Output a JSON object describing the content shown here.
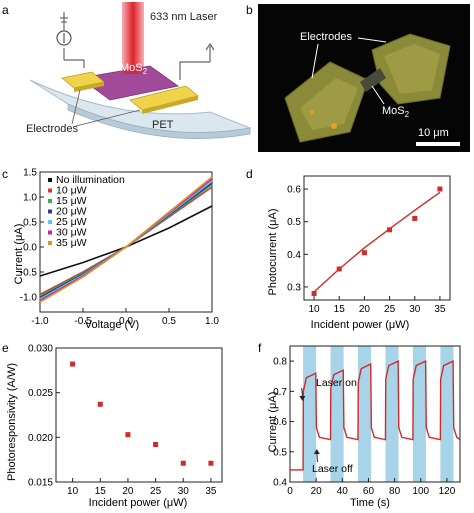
{
  "panels": {
    "a": {
      "letter": "a",
      "laser_label": "633 nm Laser",
      "material_label": "MoS",
      "material_sub": "2",
      "electrodes_label": "Electrodes",
      "substrate_label": "PET",
      "colors": {
        "laser": "#e0202a",
        "mos2": "#a24a9a",
        "electrode": "#e6c832",
        "substrate": "#c8d8e4"
      }
    },
    "b": {
      "letter": "b",
      "electrodes_label": "Electrodes",
      "material_label": "MoS",
      "material_sub": "2",
      "scale_label": "10 μm"
    },
    "c": {
      "letter": "c"
    },
    "d": {
      "letter": "d"
    },
    "e": {
      "letter": "e"
    },
    "f": {
      "letter": "f"
    }
  },
  "chart_data": [
    {
      "panel": "c",
      "type": "line",
      "xlabel": "Voltage (V)",
      "ylabel": "Current (μA)",
      "xlim": [
        -1.0,
        1.0
      ],
      "ylim": [
        -1.3,
        1.5
      ],
      "xticks": [
        "-1.0",
        "-0.5",
        "0.0",
        "0.5",
        "1.0"
      ],
      "yticks": [
        "-1.0",
        "-0.5",
        "0.0",
        "0.5",
        "1.0",
        "1.5"
      ],
      "legend_position": "top-left",
      "series": [
        {
          "name": "No illumination",
          "color": "#111111",
          "x": [
            -1.0,
            -0.5,
            0.0,
            0.5,
            1.0
          ],
          "y": [
            -0.58,
            -0.31,
            0.0,
            0.38,
            0.82
          ]
        },
        {
          "name": "10 μW",
          "color": "#e03030",
          "x": [
            -1.0,
            -0.5,
            0.0,
            0.5,
            1.0
          ],
          "y": [
            -0.95,
            -0.5,
            0.0,
            0.6,
            1.2
          ]
        },
        {
          "name": "15 μW",
          "color": "#3cb043",
          "x": [
            -1.0,
            -0.5,
            0.0,
            0.5,
            1.0
          ],
          "y": [
            -0.98,
            -0.52,
            0.0,
            0.62,
            1.25
          ]
        },
        {
          "name": "20 μW",
          "color": "#2a3a9a",
          "x": [
            -1.0,
            -0.5,
            0.0,
            0.5,
            1.0
          ],
          "y": [
            -1.01,
            -0.54,
            0.0,
            0.64,
            1.28
          ]
        },
        {
          "name": "25 μW",
          "color": "#5ec8e8",
          "x": [
            -1.0,
            -0.5,
            0.0,
            0.5,
            1.0
          ],
          "y": [
            -1.04,
            -0.56,
            0.0,
            0.66,
            1.32
          ]
        },
        {
          "name": "30 μW",
          "color": "#c02aa8",
          "x": [
            -1.0,
            -0.5,
            0.0,
            0.5,
            1.0
          ],
          "y": [
            -1.07,
            -0.58,
            0.0,
            0.68,
            1.36
          ]
        },
        {
          "name": "35 μW",
          "color": "#e8901e",
          "x": [
            -1.0,
            -0.5,
            0.0,
            0.5,
            1.0
          ],
          "y": [
            -1.1,
            -0.6,
            0.0,
            0.7,
            1.4
          ]
        }
      ]
    },
    {
      "panel": "d",
      "type": "scatter",
      "xlabel": "Incident power (μW)",
      "ylabel": "Photocurrent (μA)",
      "xlim": [
        8,
        37
      ],
      "ylim": [
        0.26,
        0.64
      ],
      "xticks": [
        "10",
        "15",
        "20",
        "25",
        "30",
        "35"
      ],
      "yticks": [
        "0.3",
        "0.4",
        "0.5",
        "0.6"
      ],
      "marker_color": "#d02a2a",
      "points": {
        "x": [
          10,
          15,
          20,
          25,
          30,
          35
        ],
        "y": [
          0.28,
          0.355,
          0.405,
          0.475,
          0.51,
          0.6
        ]
      },
      "fit": {
        "x": [
          10,
          15,
          20,
          25,
          30,
          35
        ],
        "y": [
          0.285,
          0.355,
          0.42,
          0.478,
          0.535,
          0.59
        ]
      }
    },
    {
      "panel": "e",
      "type": "scatter",
      "xlabel": "Incident power (μW)",
      "ylabel": "Photoresponsivity (A/W)",
      "xlim": [
        7,
        37
      ],
      "ylim": [
        0.015,
        0.03
      ],
      "xticks": [
        "10",
        "15",
        "20",
        "25",
        "30",
        "35"
      ],
      "yticks": [
        "0.015",
        "0.020",
        "0.025",
        "0.030"
      ],
      "marker_color": "#d02a2a",
      "points": {
        "x": [
          10,
          15,
          20,
          25,
          30,
          35
        ],
        "y": [
          0.0282,
          0.0237,
          0.0203,
          0.0192,
          0.0171,
          0.0171
        ]
      }
    },
    {
      "panel": "f",
      "type": "line",
      "xlabel": "Time (s)",
      "ylabel": "Current (μA)",
      "xlim": [
        0,
        130
      ],
      "ylim": [
        0.4,
        0.85
      ],
      "xticks": [
        "0",
        "20",
        "40",
        "60",
        "80",
        "100",
        "120"
      ],
      "yticks": [
        "0.4",
        "0.5",
        "0.6",
        "0.7",
        "0.8"
      ],
      "line_color": "#d02a2a",
      "band_color": "#a8d4ea",
      "laser_on_intervals": [
        [
          10,
          20
        ],
        [
          31,
          41
        ],
        [
          52,
          62
        ],
        [
          73,
          83
        ],
        [
          94,
          104
        ],
        [
          115,
          125
        ]
      ],
      "baseline": 0.44,
      "dark_level": 0.54,
      "on_levels": [
        0.76,
        0.77,
        0.79,
        0.8,
        0.8,
        0.8
      ],
      "annotations": [
        "Laser on",
        "Laser off"
      ]
    }
  ]
}
